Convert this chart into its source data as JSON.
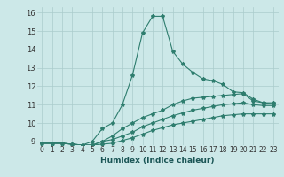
{
  "title": "",
  "xlabel": "Humidex (Indice chaleur)",
  "bg_color": "#cce8e8",
  "line_color": "#2e7d6e",
  "grid_color": "#aacccc",
  "xlim": [
    -0.5,
    23.5
  ],
  "ylim": [
    8.8,
    16.3
  ],
  "yticks": [
    9,
    10,
    11,
    12,
    13,
    14,
    15,
    16
  ],
  "xticks": [
    0,
    1,
    2,
    3,
    4,
    5,
    6,
    7,
    8,
    9,
    10,
    11,
    12,
    13,
    14,
    15,
    16,
    17,
    18,
    19,
    20,
    21,
    22,
    23
  ],
  "series": [
    {
      "x": [
        0,
        1,
        2,
        3,
        4,
        5,
        6,
        7,
        8,
        9,
        10,
        11,
        12,
        13,
        14,
        15,
        16,
        17,
        18,
        19,
        20,
        21,
        22,
        23
      ],
      "y": [
        8.9,
        8.9,
        8.9,
        8.85,
        8.8,
        9.0,
        9.7,
        10.0,
        11.0,
        12.6,
        14.9,
        15.8,
        15.8,
        13.9,
        13.2,
        12.75,
        12.4,
        12.3,
        12.1,
        11.7,
        11.65,
        11.3,
        11.1,
        11.1
      ]
    },
    {
      "x": [
        0,
        1,
        2,
        3,
        4,
        5,
        6,
        7,
        8,
        9,
        10,
        11,
        12,
        13,
        14,
        15,
        16,
        17,
        18,
        19,
        20,
        21,
        22,
        23
      ],
      "y": [
        8.9,
        8.9,
        8.9,
        8.85,
        8.8,
        8.8,
        9.0,
        9.3,
        9.7,
        10.0,
        10.3,
        10.5,
        10.7,
        11.0,
        11.2,
        11.35,
        11.4,
        11.45,
        11.5,
        11.55,
        11.6,
        11.2,
        11.1,
        11.05
      ]
    },
    {
      "x": [
        0,
        1,
        2,
        3,
        4,
        5,
        6,
        7,
        8,
        9,
        10,
        11,
        12,
        13,
        14,
        15,
        16,
        17,
        18,
        19,
        20,
        21,
        22,
        23
      ],
      "y": [
        8.9,
        8.9,
        8.9,
        8.85,
        8.8,
        8.8,
        9.0,
        9.1,
        9.3,
        9.5,
        9.8,
        10.0,
        10.2,
        10.4,
        10.55,
        10.7,
        10.8,
        10.9,
        11.0,
        11.05,
        11.1,
        11.0,
        10.95,
        10.95
      ]
    },
    {
      "x": [
        0,
        1,
        2,
        3,
        4,
        5,
        6,
        7,
        8,
        9,
        10,
        11,
        12,
        13,
        14,
        15,
        16,
        17,
        18,
        19,
        20,
        21,
        22,
        23
      ],
      "y": [
        8.9,
        8.9,
        8.9,
        8.85,
        8.8,
        8.8,
        8.85,
        8.9,
        9.05,
        9.2,
        9.4,
        9.6,
        9.75,
        9.9,
        10.0,
        10.1,
        10.2,
        10.3,
        10.4,
        10.45,
        10.5,
        10.5,
        10.5,
        10.5
      ]
    }
  ],
  "xlabel_fontsize": 6.5,
  "tick_fontsize": 5.5,
  "ytick_fontsize": 6.0
}
